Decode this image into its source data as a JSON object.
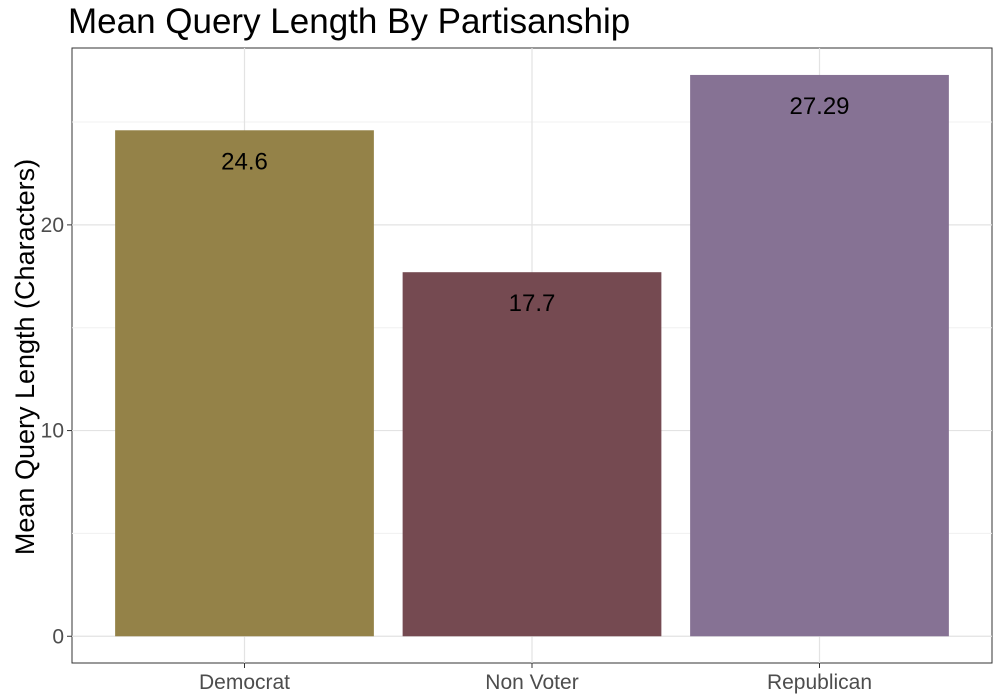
{
  "chart_data": {
    "type": "bar",
    "title": "Mean Query Length By Partisanship",
    "xlabel": "",
    "ylabel": "Mean Query Length (Characters)",
    "categories": [
      "Democrat",
      "Non Voter",
      "Republican"
    ],
    "values": [
      24.6,
      17.7,
      27.29
    ],
    "value_labels": [
      "24.6",
      "17.7",
      "27.29"
    ],
    "colors": [
      "#948248",
      "#754a51",
      "#867294"
    ],
    "ylim": [
      -1.3,
      28.6
    ],
    "yticks": [
      0,
      10,
      20
    ],
    "grid": true,
    "legend": "none"
  }
}
